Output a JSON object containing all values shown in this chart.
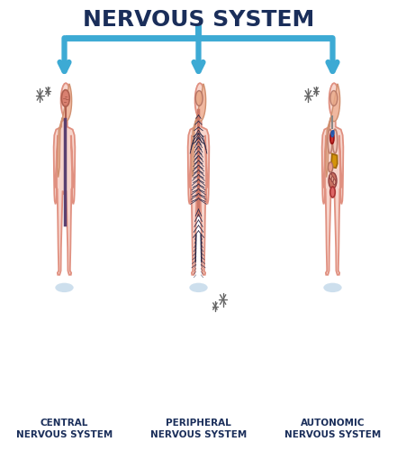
{
  "title": "NERVOUS SYSTEM",
  "title_fontsize": 18,
  "title_color": "#1a2e5a",
  "labels": [
    "CENTRAL\nNERVOUS SYSTEM",
    "PERIPHERAL\nNERVOUS SYSTEM",
    "AUTONOMIC\nNERVOUS SYSTEM"
  ],
  "label_fontsize": 7.5,
  "label_color": "#1a2e5a",
  "arrow_color": "#3daad4",
  "body_fill": "#f7d5cc",
  "body_outline": "#e09080",
  "body_lw": 1.3,
  "hair_fill": "#f0b8a0",
  "hair_outline": "#d09070",
  "shadow_fill": "#bdd5e8",
  "brain_fill": "#d98070",
  "brain_outline": "#b06050",
  "spine_color": "#5a4070",
  "nerve_color": "#2a2a4a",
  "bg_color": "#ffffff",
  "sparkle_color": "#666666",
  "organ_heart_fill": "#cc3333",
  "organ_heart_outline": "#991111",
  "organ_lung_fill": "#f0c8bc",
  "organ_lung_outline": "#c08070",
  "organ_liver_fill": "#d4940a",
  "organ_liver_outline": "#a06808",
  "organ_stomach_fill": "#e8a090",
  "organ_stomach_outline": "#b07060",
  "organ_intestine_fill": "#c87060",
  "organ_intestine_outline": "#904040",
  "organ_bladder_fill": "#dd6666",
  "organ_bladder_outline": "#aa3333",
  "organ_vessel_fill": "#4488cc",
  "organ_vessel_outline": "#2255aa"
}
